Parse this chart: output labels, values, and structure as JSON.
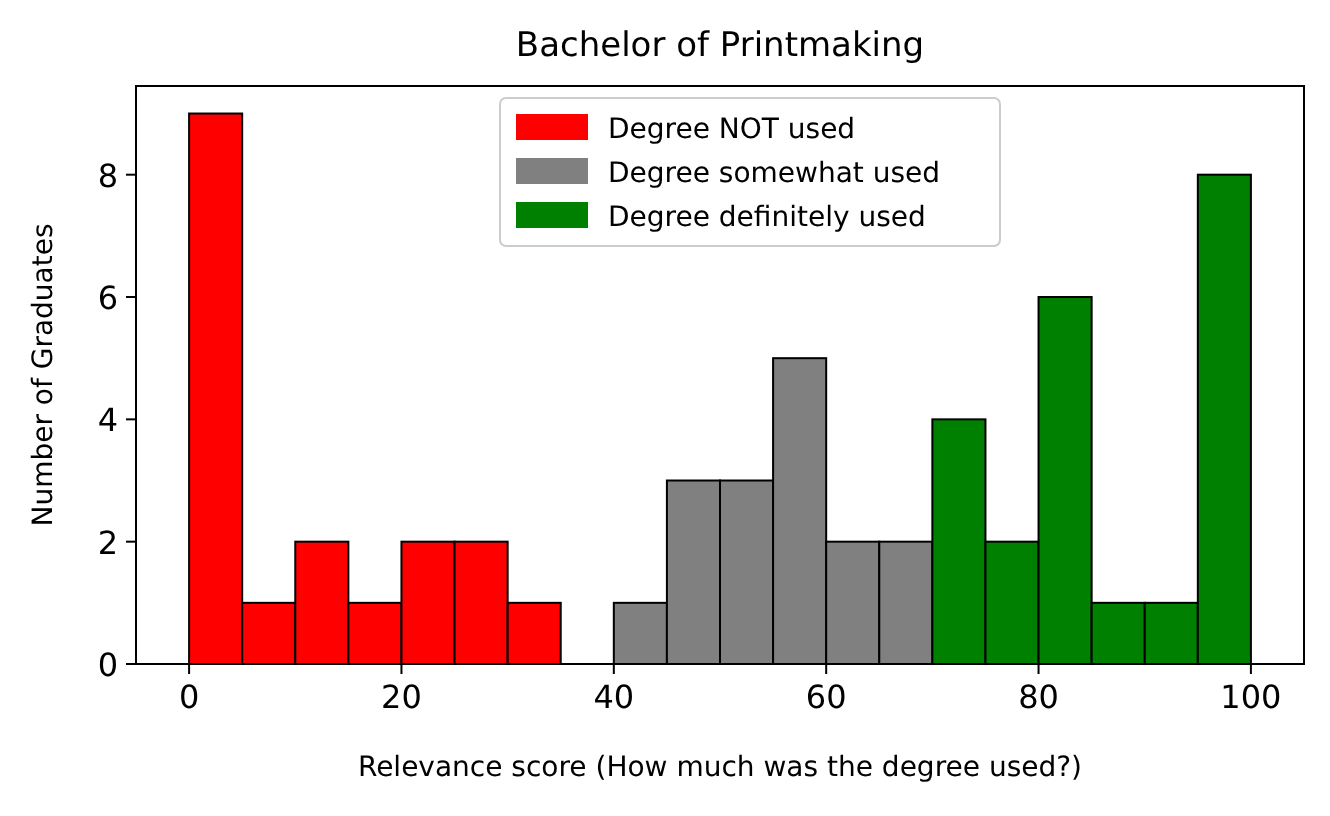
{
  "chart_data": {
    "type": "histogram",
    "title": "Bachelor of Printmaking",
    "xlabel": "Relevance score (How much was the degree used?)",
    "ylabel": "Number of Graduates",
    "bins": [
      0,
      5,
      10,
      15,
      20,
      25,
      30,
      35,
      40,
      45,
      50,
      55,
      60,
      65,
      70,
      75,
      80,
      85,
      90,
      95,
      100
    ],
    "series": [
      {
        "name": "Degree NOT used",
        "color": "#ff0000",
        "values": [
          9,
          1,
          2,
          1,
          2,
          2,
          1,
          0,
          null,
          null,
          null,
          null,
          null,
          null,
          null,
          null,
          null,
          null,
          null,
          null
        ]
      },
      {
        "name": "Degree somewhat used",
        "color": "#808080",
        "values": [
          null,
          null,
          null,
          null,
          null,
          null,
          null,
          null,
          1,
          3,
          3,
          5,
          2,
          2,
          null,
          null,
          null,
          null,
          null,
          null
        ]
      },
      {
        "name": "Degree definitely used",
        "color": "#008000",
        "values": [
          null,
          null,
          null,
          null,
          null,
          null,
          null,
          null,
          null,
          null,
          null,
          null,
          null,
          null,
          4,
          2,
          6,
          1,
          1,
          8
        ]
      }
    ],
    "xlim": [
      -5,
      105
    ],
    "xticks": [
      0,
      20,
      40,
      60,
      80,
      100
    ],
    "ylim": [
      0,
      9.45
    ],
    "yticks": [
      0,
      2,
      4,
      6,
      8
    ],
    "legend": "top",
    "grid": false
  }
}
